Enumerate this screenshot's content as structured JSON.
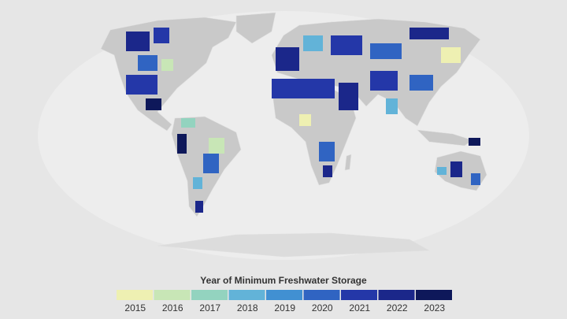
{
  "legend": {
    "title": "Year of Minimum Freshwater Storage",
    "items": [
      {
        "label": "2015",
        "color": "#eef0b2"
      },
      {
        "label": "2016",
        "color": "#c8e6b6"
      },
      {
        "label": "2017",
        "color": "#93d3bf"
      },
      {
        "label": "2018",
        "color": "#62b3d8"
      },
      {
        "label": "2019",
        "color": "#4190d2"
      },
      {
        "label": "2020",
        "color": "#3064c2"
      },
      {
        "label": "2021",
        "color": "#2437a8"
      },
      {
        "label": "2022",
        "color": "#1b278a"
      },
      {
        "label": "2023",
        "color": "#0e185a"
      }
    ]
  }
}
